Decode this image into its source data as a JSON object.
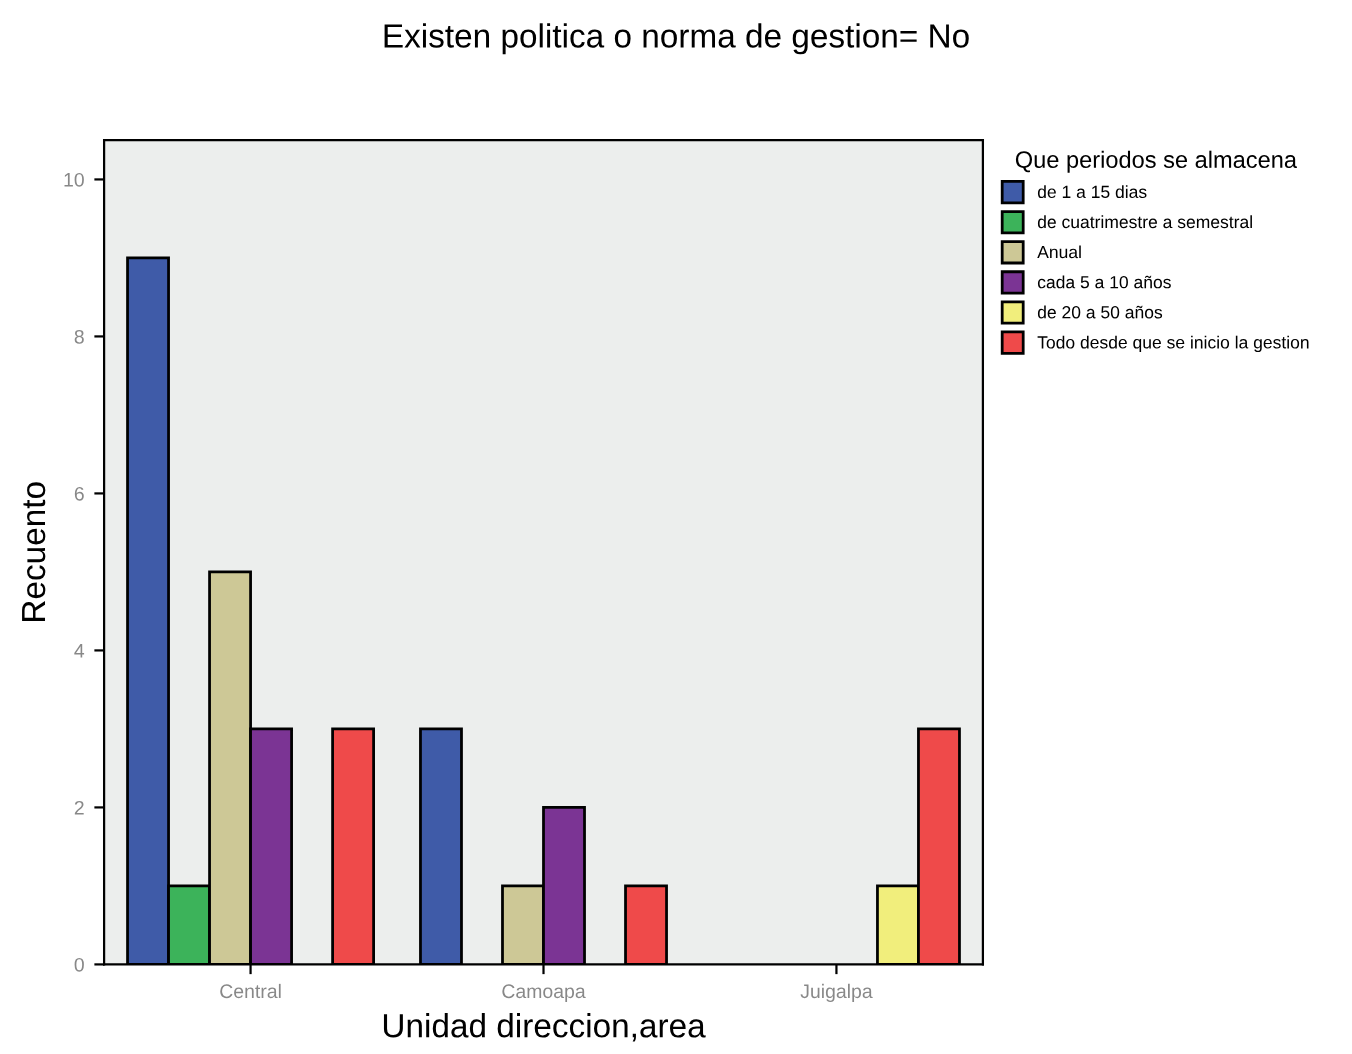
{
  "chart_data": {
    "type": "bar",
    "title": "Existen politica o norma de gestion= No",
    "xlabel": "Unidad direccion,area",
    "ylabel": "Recuento",
    "legend_title": "Que periodos se almacena",
    "categories": [
      "Central",
      "Camoapa",
      "Juigalpa"
    ],
    "series": [
      {
        "name": "de 1 a 15 dias",
        "color": "#3f5ba8",
        "values": [
          9,
          3,
          null
        ]
      },
      {
        "name": "de cuatrimestre a semestral",
        "color": "#3cb35a",
        "values": [
          1,
          null,
          null
        ]
      },
      {
        "name": "Anual",
        "color": "#cdc896",
        "values": [
          5,
          1,
          null
        ]
      },
      {
        "name": "cada 5 a 10 años",
        "color": "#7b3494",
        "values": [
          3,
          2,
          null
        ]
      },
      {
        "name": "de 20 a 50 años",
        "color": "#f1ee7c",
        "values": [
          null,
          null,
          1
        ]
      },
      {
        "name": "Todo desde que se inicio la gestion",
        "color": "#ef4a4a",
        "values": [
          3,
          1,
          3
        ]
      }
    ],
    "ylim": [
      0,
      10.5
    ],
    "yticks": [
      0,
      2,
      4,
      6,
      8,
      10
    ],
    "grid": false,
    "legend": "right"
  }
}
